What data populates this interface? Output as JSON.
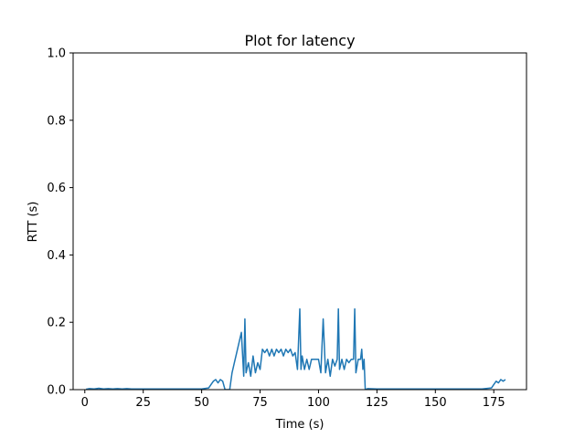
{
  "chart_data": {
    "type": "line",
    "title": "Plot for latency",
    "xlabel": "Time (s)",
    "ylabel": "RTT (s)",
    "xlim": [
      -5,
      189
    ],
    "ylim": [
      0,
      1.0
    ],
    "xticks": [
      0,
      25,
      50,
      75,
      100,
      125,
      150,
      175
    ],
    "xtick_labels": [
      "0",
      "25",
      "50",
      "75",
      "100",
      "125",
      "150",
      "175"
    ],
    "yticks": [
      0,
      0.2,
      0.4,
      0.6,
      0.8,
      1.0
    ],
    "ytick_labels": [
      "0.0",
      "0.2",
      "0.4",
      "0.6",
      "0.8",
      "1.0"
    ],
    "grid": false,
    "legend": "none",
    "colors": {
      "series": "#1f77b4",
      "axes": "#000000",
      "background": "#ffffff"
    },
    "series": [
      {
        "x": [
          0.5,
          2,
          4,
          6,
          8,
          10,
          12,
          14,
          16,
          18,
          20,
          25,
          30,
          35,
          40,
          45,
          50,
          53,
          54,
          55,
          56,
          57,
          58,
          59,
          60,
          61,
          62,
          63,
          64,
          65,
          66,
          67,
          68,
          68.5,
          69,
          70,
          71,
          72,
          73,
          74,
          75,
          76,
          77,
          78,
          79,
          80,
          81,
          82,
          83,
          84,
          85,
          86,
          87,
          88,
          89,
          90,
          91,
          92,
          92.5,
          93,
          94,
          95,
          96,
          97,
          98,
          99,
          100,
          101,
          102,
          103,
          104,
          105,
          106,
          107,
          108,
          108.5,
          109,
          110,
          111,
          112,
          113,
          114,
          115,
          115.5,
          116,
          117,
          118,
          118.5,
          119,
          119.5,
          120,
          121,
          125,
          130,
          140,
          150,
          160,
          170,
          174,
          175,
          176,
          177,
          178,
          179,
          180
        ],
        "y": [
          0.001,
          0.003,
          0.002,
          0.004,
          0.002,
          0.003,
          0.002,
          0.003,
          0.002,
          0.003,
          0.002,
          0.002,
          0.002,
          0.002,
          0.002,
          0.002,
          0.002,
          0.005,
          0.015,
          0.025,
          0.03,
          0.02,
          0.03,
          0.025,
          0.0,
          0.0,
          0.0,
          0.05,
          0.08,
          0.11,
          0.14,
          0.17,
          0.04,
          0.21,
          0.05,
          0.08,
          0.04,
          0.1,
          0.05,
          0.08,
          0.06,
          0.12,
          0.11,
          0.12,
          0.1,
          0.12,
          0.1,
          0.12,
          0.11,
          0.12,
          0.1,
          0.12,
          0.11,
          0.12,
          0.1,
          0.11,
          0.06,
          0.24,
          0.06,
          0.1,
          0.06,
          0.09,
          0.06,
          0.09,
          0.09,
          0.09,
          0.09,
          0.05,
          0.21,
          0.05,
          0.09,
          0.04,
          0.09,
          0.07,
          0.09,
          0.24,
          0.06,
          0.09,
          0.06,
          0.09,
          0.08,
          0.09,
          0.09,
          0.24,
          0.05,
          0.09,
          0.09,
          0.12,
          0.06,
          0.09,
          0.0,
          0.003,
          0.002,
          0.002,
          0.002,
          0.002,
          0.002,
          0.002,
          0.005,
          0.015,
          0.025,
          0.02,
          0.03,
          0.025,
          0.03
        ]
      }
    ]
  }
}
